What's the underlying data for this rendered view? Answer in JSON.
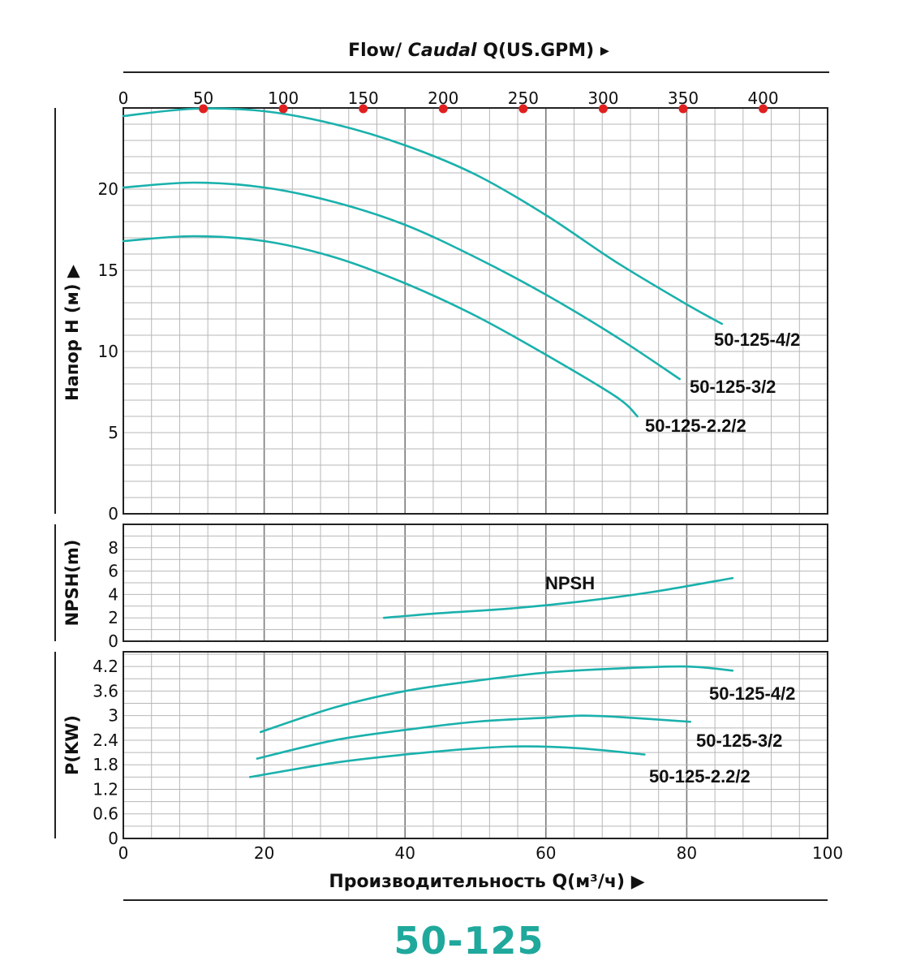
{
  "header": {
    "flow_label": "Flow/",
    "caudal_label": "Caudal",
    "gpm_label": "Q(US.GPM)",
    "arrow": "▸"
  },
  "footer": {
    "x_axis_label": "Производительность Q(м³/ч)",
    "arrow": "▶",
    "model": "50-125"
  },
  "colors": {
    "curve": "#1ab1ac",
    "brand": "#1fa89c",
    "gpm_dot": "#e02020",
    "grid": "#b7b7b7",
    "axis": "#222222"
  },
  "chart_data": [
    {
      "type": "line",
      "panel": "head",
      "ylabel": "Напор H (м)",
      "ylabel_arrow": "▶",
      "xlabel": "Производительность Q(м³/ч)",
      "xlim": [
        0,
        100
      ],
      "ylim": [
        0,
        25
      ],
      "yticks": [
        0,
        5,
        10,
        15,
        20
      ],
      "x2": {
        "label": "Flow/ Caudal Q(US.GPM)",
        "ticks": [
          0,
          50,
          100,
          150,
          200,
          250,
          300,
          350,
          400
        ],
        "range": [
          0,
          440.3
        ]
      },
      "series": [
        {
          "name": "50-125-4/2",
          "x": [
            0,
            10,
            20,
            30,
            40,
            50,
            60,
            70,
            80,
            85
          ],
          "y": [
            24.5,
            24.95,
            24.8,
            24.0,
            22.7,
            20.9,
            18.4,
            15.5,
            12.9,
            11.7
          ]
        },
        {
          "name": "50-125-3/2",
          "x": [
            0,
            10,
            20,
            30,
            40,
            50,
            60,
            70,
            79
          ],
          "y": [
            20.1,
            20.4,
            20.1,
            19.2,
            17.8,
            15.8,
            13.5,
            10.9,
            8.3
          ]
        },
        {
          "name": "50-125-2.2/2",
          "x": [
            0,
            10,
            20,
            30,
            40,
            50,
            60,
            70,
            73
          ],
          "y": [
            16.8,
            17.1,
            16.8,
            15.8,
            14.2,
            12.2,
            9.8,
            7.2,
            6.0
          ]
        }
      ]
    },
    {
      "type": "line",
      "panel": "npsh",
      "ylabel": "NPSH(m)",
      "xlim": [
        0,
        100
      ],
      "ylim": [
        0,
        10
      ],
      "yticks": [
        0,
        2,
        4,
        6,
        8
      ],
      "series": [
        {
          "name": "NPSH",
          "x": [
            37,
            45,
            55,
            65,
            75,
            86.5
          ],
          "y": [
            2.0,
            2.4,
            2.8,
            3.4,
            4.2,
            5.4
          ]
        }
      ]
    },
    {
      "type": "line",
      "panel": "power",
      "ylabel": "P(KW)",
      "xlim": [
        0,
        100
      ],
      "ylim": [
        0,
        4.56
      ],
      "yticks": [
        0,
        0.6,
        1.2,
        1.8,
        2.4,
        3,
        3.6,
        4.2
      ],
      "ytick_labels": [
        "0",
        "0.6",
        "1.2",
        "1.8",
        "2.4",
        "3",
        "3.6",
        "4.2"
      ],
      "xticks": [
        0,
        20,
        40,
        60,
        80,
        100
      ],
      "series": [
        {
          "name": "50-125-4/2",
          "x": [
            19.5,
            30,
            40,
            50,
            60,
            70,
            80,
            86.5
          ],
          "y": [
            2.6,
            3.2,
            3.6,
            3.85,
            4.05,
            4.15,
            4.2,
            4.1
          ]
        },
        {
          "name": "50-125-3/2",
          "x": [
            19,
            30,
            40,
            50,
            60,
            65,
            70,
            80.5
          ],
          "y": [
            1.95,
            2.4,
            2.65,
            2.85,
            2.95,
            3.0,
            2.97,
            2.85
          ]
        },
        {
          "name": "50-125-2.2/2",
          "x": [
            18,
            30,
            40,
            50,
            57,
            65,
            74
          ],
          "y": [
            1.5,
            1.85,
            2.05,
            2.2,
            2.25,
            2.2,
            2.05
          ]
        }
      ]
    }
  ]
}
